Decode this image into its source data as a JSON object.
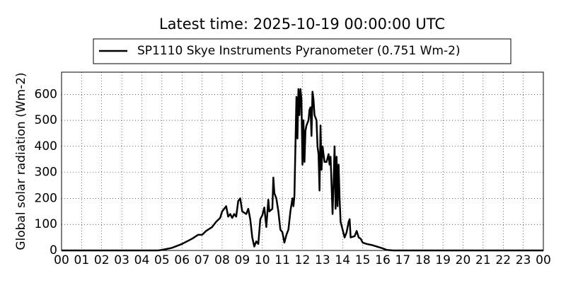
{
  "chart_data": {
    "type": "line",
    "title": "Latest time: 2025-10-19 00:00:00 UTC",
    "y_label": "Global solar radiation (Wm-2)",
    "x": [
      0,
      4.8,
      5.0,
      5.5,
      6.0,
      6.5,
      6.8,
      7.0,
      7.2,
      7.5,
      7.7,
      7.9,
      8.0,
      8.2,
      8.3,
      8.4,
      8.5,
      8.6,
      8.7,
      8.8,
      8.9,
      9.0,
      9.2,
      9.3,
      9.4,
      9.5,
      9.6,
      9.7,
      9.8,
      9.9,
      10.0,
      10.1,
      10.2,
      10.3,
      10.35,
      10.5,
      10.55,
      10.6,
      10.7,
      10.8,
      10.9,
      11.0,
      11.1,
      11.2,
      11.3,
      11.4,
      11.5,
      11.55,
      11.6,
      11.7,
      11.75,
      11.8,
      11.85,
      11.9,
      11.95,
      12.0,
      12.05,
      12.1,
      12.15,
      12.2,
      12.3,
      12.35,
      12.4,
      12.45,
      12.5,
      12.55,
      12.6,
      12.7,
      12.75,
      12.8,
      12.85,
      12.9,
      12.95,
      13.0,
      13.1,
      13.2,
      13.3,
      13.35,
      13.4,
      13.5,
      13.55,
      13.6,
      13.65,
      13.7,
      13.75,
      13.8,
      13.85,
      13.9,
      14.0,
      14.1,
      14.2,
      14.3,
      14.35,
      14.4,
      14.6,
      14.7,
      14.8,
      14.9,
      15.0,
      15.2,
      15.5,
      16.0,
      16.2,
      16.5,
      24
    ],
    "series": [
      {
        "name": "SP1110 Skye Instruments Pyranometer (0.751 Wm-2)",
        "color": "#000000",
        "values": [
          0,
          0,
          2,
          10,
          25,
          45,
          60,
          60,
          75,
          90,
          110,
          125,
          150,
          170,
          130,
          140,
          125,
          140,
          130,
          190,
          200,
          150,
          140,
          160,
          120,
          50,
          15,
          35,
          25,
          120,
          135,
          165,
          90,
          195,
          150,
          160,
          280,
          220,
          200,
          150,
          80,
          70,
          30,
          60,
          80,
          150,
          200,
          170,
          210,
          590,
          430,
          620,
          520,
          620,
          580,
          330,
          500,
          340,
          460,
          480,
          500,
          540,
          550,
          440,
          610,
          580,
          520,
          500,
          400,
          370,
          230,
          480,
          310,
          400,
          340,
          340,
          370,
          330,
          360,
          140,
          260,
          400,
          160,
          360,
          170,
          330,
          200,
          110,
          80,
          50,
          70,
          110,
          120,
          50,
          55,
          75,
          50,
          45,
          30,
          25,
          20,
          8,
          2,
          0,
          0
        ]
      }
    ],
    "xlim": [
      0,
      24
    ],
    "xticks": [
      {
        "value": 0,
        "label": "00"
      },
      {
        "value": 1,
        "label": "01"
      },
      {
        "value": 2,
        "label": "02"
      },
      {
        "value": 3,
        "label": "03"
      },
      {
        "value": 4,
        "label": "04"
      },
      {
        "value": 5,
        "label": "05"
      },
      {
        "value": 6,
        "label": "06"
      },
      {
        "value": 7,
        "label": "07"
      },
      {
        "value": 8,
        "label": "08"
      },
      {
        "value": 9,
        "label": "09"
      },
      {
        "value": 10,
        "label": "10"
      },
      {
        "value": 11,
        "label": "11"
      },
      {
        "value": 12,
        "label": "12"
      },
      {
        "value": 13,
        "label": "13"
      },
      {
        "value": 14,
        "label": "14"
      },
      {
        "value": 15,
        "label": "15"
      },
      {
        "value": 16,
        "label": "16"
      },
      {
        "value": 17,
        "label": "17"
      },
      {
        "value": 18,
        "label": "18"
      },
      {
        "value": 19,
        "label": "19"
      },
      {
        "value": 20,
        "label": "20"
      },
      {
        "value": 21,
        "label": "21"
      },
      {
        "value": 22,
        "label": "22"
      },
      {
        "value": 23,
        "label": "23"
      },
      {
        "value": 24,
        "label": "00"
      }
    ],
    "ylim": [
      0,
      685
    ],
    "yticks": [
      0,
      100,
      200,
      300,
      400,
      500,
      600
    ],
    "grid": true,
    "legend": "top"
  }
}
